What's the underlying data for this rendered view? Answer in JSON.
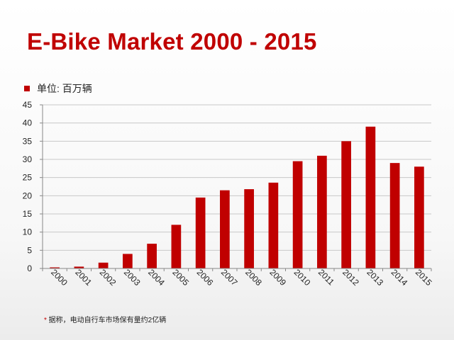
{
  "title": "E-Bike Market 2000 - 2015",
  "footnote": "* 据称，电动自行车市场保有量约2亿辆",
  "colors": {
    "title": "#c00000",
    "bar": "#c00000",
    "grid": "#c8c8c8",
    "axis": "#888888",
    "footnote_mark": "#c00000"
  },
  "chart_data": {
    "type": "bar",
    "title": "E-Bike Market 2000 - 2015",
    "xlabel": "",
    "ylabel": "",
    "legend": {
      "label": "单位: 百万辆",
      "position": "top-left"
    },
    "categories": [
      "2000",
      "2001",
      "2002",
      "2003",
      "2004",
      "2005",
      "2006",
      "2007",
      "2008",
      "2009",
      "2010",
      "2011",
      "2012",
      "2013",
      "2014",
      "2015"
    ],
    "values": [
      0.3,
      0.5,
      1.6,
      4.0,
      6.8,
      12.0,
      19.5,
      21.5,
      21.8,
      23.6,
      29.5,
      31.0,
      35.0,
      39.0,
      29.0,
      28.0
    ],
    "ylim": [
      0,
      45
    ],
    "yticks": [
      0,
      5,
      10,
      15,
      20,
      25,
      30,
      35,
      40,
      45
    ],
    "grid": true
  }
}
